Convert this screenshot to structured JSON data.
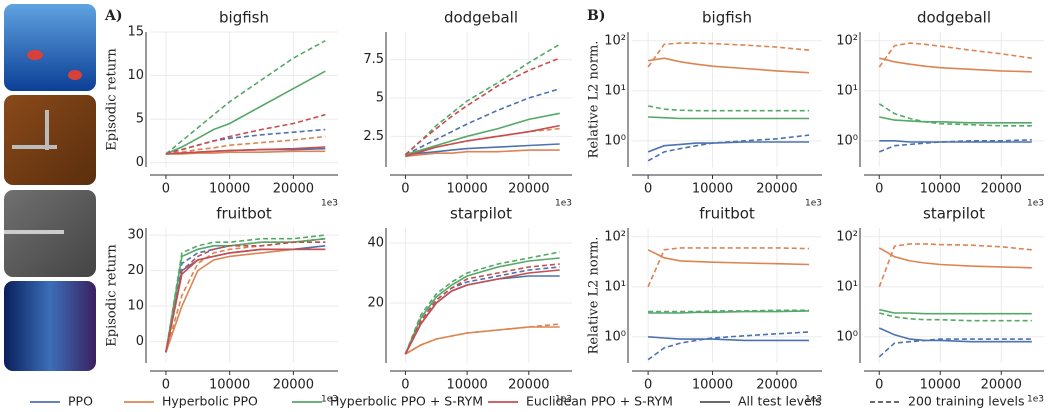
{
  "chart_data": [
    {
      "type": "line",
      "panel": "A)",
      "title": "bigfish",
      "ylabel": "Episodic return",
      "x_offset": "1e3",
      "x": [
        0,
        2500,
        5000,
        7500,
        10000,
        15000,
        20000,
        25000
      ],
      "xlim": [
        -2500,
        27000
      ],
      "xticks": [
        0,
        10000,
        20000
      ],
      "ylim": [
        -0.5,
        15
      ],
      "yticks": [
        0,
        5,
        10,
        15
      ],
      "log": false,
      "grid": true,
      "series": [
        {
          "color": "#4c72b0",
          "dashed": false,
          "values": [
            1,
            1.1,
            1.2,
            1.3,
            1.4,
            1.5,
            1.5,
            1.6
          ]
        },
        {
          "color": "#4c72b0",
          "dashed": true,
          "values": [
            1,
            1.5,
            2,
            2.5,
            2.8,
            3.2,
            3.5,
            3.8
          ]
        },
        {
          "color": "#dd8452",
          "dashed": false,
          "values": [
            1,
            1,
            1.1,
            1.1,
            1.2,
            1.2,
            1.3,
            1.3
          ]
        },
        {
          "color": "#dd8452",
          "dashed": true,
          "values": [
            1,
            1.2,
            1.5,
            1.7,
            2,
            2.3,
            2.6,
            3
          ]
        },
        {
          "color": "#55a868",
          "dashed": false,
          "values": [
            1,
            1.8,
            2.8,
            3.8,
            4.5,
            6.5,
            8.5,
            10.5
          ]
        },
        {
          "color": "#55a868",
          "dashed": true,
          "values": [
            1,
            2.5,
            4,
            5.5,
            7,
            9.5,
            12,
            14
          ]
        },
        {
          "color": "#c44e52",
          "dashed": false,
          "values": [
            1,
            1.1,
            1.2,
            1.3,
            1.4,
            1.5,
            1.6,
            1.8
          ]
        },
        {
          "color": "#c44e52",
          "dashed": true,
          "values": [
            1,
            1.5,
            2,
            2.5,
            3,
            3.8,
            4.5,
            5.5
          ]
        }
      ]
    },
    {
      "type": "line",
      "title": "dodgeball",
      "x_offset": "1e3",
      "x": [
        0,
        2500,
        5000,
        7500,
        10000,
        15000,
        20000,
        25000
      ],
      "xlim": [
        -2500,
        27000
      ],
      "xticks": [
        0,
        10000,
        20000
      ],
      "ylim": [
        0.5,
        9.3
      ],
      "yticks": [
        2.5,
        5.0,
        7.5
      ],
      "log": false,
      "grid": true,
      "series": [
        {
          "color": "#4c72b0",
          "dashed": false,
          "values": [
            1.3,
            1.4,
            1.5,
            1.6,
            1.7,
            1.8,
            1.9,
            2
          ]
        },
        {
          "color": "#4c72b0",
          "dashed": true,
          "values": [
            1.3,
            1.8,
            2.3,
            2.8,
            3.3,
            4.2,
            5,
            5.6
          ]
        },
        {
          "color": "#dd8452",
          "dashed": false,
          "values": [
            1.2,
            1.3,
            1.4,
            1.4,
            1.5,
            1.5,
            1.6,
            1.6
          ]
        },
        {
          "color": "#dd8452",
          "dashed": true,
          "values": [
            1.2,
            1.5,
            1.8,
            2,
            2.2,
            2.5,
            2.8,
            3
          ]
        },
        {
          "color": "#55a868",
          "dashed": false,
          "values": [
            1.3,
            1.6,
            1.9,
            2.2,
            2.5,
            3,
            3.6,
            4
          ]
        },
        {
          "color": "#55a868",
          "dashed": true,
          "values": [
            1.3,
            2.2,
            3.2,
            4,
            4.8,
            6,
            7.3,
            8.5
          ]
        },
        {
          "color": "#c44e52",
          "dashed": false,
          "values": [
            1.2,
            1.5,
            1.8,
            2,
            2.2,
            2.5,
            2.8,
            3.2
          ]
        },
        {
          "color": "#c44e52",
          "dashed": true,
          "values": [
            1.3,
            2.2,
            3,
            3.8,
            4.5,
            5.8,
            6.8,
            7.6
          ]
        }
      ]
    },
    {
      "type": "line",
      "panel": "B)",
      "title": "bigfish",
      "ylabel": "Relative L2 norm.",
      "x_offset": "1e3",
      "x": [
        0,
        2500,
        5000,
        7500,
        10000,
        15000,
        20000,
        25000
      ],
      "xlim": [
        -2500,
        27000
      ],
      "xticks": [
        0,
        10000,
        20000
      ],
      "ylim": [
        0.3,
        150
      ],
      "yticks": [
        {
          "value": 1,
          "label": "10⁰"
        },
        {
          "value": 10,
          "label": "10¹"
        },
        {
          "value": 100,
          "label": "10²"
        }
      ],
      "log": true,
      "grid": true,
      "series": [
        {
          "color": "#4c72b0",
          "dashed": false,
          "values": [
            0.6,
            0.8,
            0.85,
            0.9,
            0.9,
            0.95,
            0.95,
            0.95
          ]
        },
        {
          "color": "#4c72b0",
          "dashed": true,
          "values": [
            0.4,
            0.6,
            0.7,
            0.8,
            0.9,
            1.0,
            1.1,
            1.3
          ]
        },
        {
          "color": "#dd8452",
          "dashed": false,
          "values": [
            40,
            45,
            38,
            34,
            31,
            28,
            25,
            23
          ]
        },
        {
          "color": "#dd8452",
          "dashed": true,
          "values": [
            30,
            85,
            90,
            90,
            88,
            82,
            75,
            65
          ]
        },
        {
          "color": "#55a868",
          "dashed": false,
          "values": [
            3,
            2.9,
            2.8,
            2.8,
            2.8,
            2.8,
            2.8,
            2.8
          ]
        },
        {
          "color": "#55a868",
          "dashed": true,
          "values": [
            5,
            4.3,
            4.1,
            4,
            4,
            4,
            4,
            4
          ]
        }
      ]
    },
    {
      "type": "line",
      "title": "dodgeball",
      "x_offset": "1e3",
      "x": [
        0,
        2500,
        5000,
        7500,
        10000,
        15000,
        20000,
        25000
      ],
      "xlim": [
        -2500,
        27000
      ],
      "xticks": [
        0,
        10000,
        20000
      ],
      "ylim": [
        0.3,
        150
      ],
      "yticks": [
        {
          "value": 1,
          "label": "10⁰"
        },
        {
          "value": 10,
          "label": "10¹"
        },
        {
          "value": 100,
          "label": "10²"
        }
      ],
      "log": true,
      "grid": true,
      "series": [
        {
          "color": "#4c72b0",
          "dashed": false,
          "values": [
            1,
            1,
            0.95,
            0.95,
            0.95,
            0.95,
            0.95,
            0.95
          ]
        },
        {
          "color": "#4c72b0",
          "dashed": true,
          "values": [
            0.6,
            0.8,
            0.85,
            0.9,
            0.95,
            1,
            1,
            1.05
          ]
        },
        {
          "color": "#dd8452",
          "dashed": false,
          "values": [
            45,
            38,
            34,
            31,
            29,
            27,
            25,
            24
          ]
        },
        {
          "color": "#dd8452",
          "dashed": true,
          "values": [
            30,
            80,
            90,
            85,
            78,
            65,
            55,
            45
          ]
        },
        {
          "color": "#55a868",
          "dashed": false,
          "values": [
            3,
            2.6,
            2.5,
            2.4,
            2.4,
            2.3,
            2.3,
            2.3
          ]
        },
        {
          "color": "#55a868",
          "dashed": true,
          "values": [
            5.5,
            3.5,
            2.8,
            2.4,
            2.2,
            2.1,
            2,
            2
          ]
        }
      ]
    },
    {
      "type": "line",
      "title": "fruitbot",
      "ylabel": "Episodic return",
      "x_offset": "1e3",
      "x": [
        0,
        2500,
        5000,
        7500,
        10000,
        15000,
        20000,
        25000
      ],
      "xlim": [
        -2500,
        27000
      ],
      "xticks": [
        0,
        10000,
        20000
      ],
      "ylim": [
        -6,
        32
      ],
      "yticks": [
        0,
        10,
        20,
        30
      ],
      "log": false,
      "grid": true,
      "series": [
        {
          "color": "#4c72b0",
          "dashed": false,
          "values": [
            -3,
            20,
            23,
            24,
            25,
            26,
            26,
            27
          ]
        },
        {
          "color": "#4c72b0",
          "dashed": true,
          "values": [
            -3,
            22,
            25,
            26,
            27,
            28,
            28,
            29
          ]
        },
        {
          "color": "#dd8452",
          "dashed": false,
          "values": [
            -3,
            10,
            20,
            23,
            24,
            25,
            26,
            26
          ]
        },
        {
          "color": "#dd8452",
          "dashed": true,
          "values": [
            -3,
            13,
            22,
            25,
            26,
            27,
            28,
            28
          ]
        },
        {
          "color": "#55a868",
          "dashed": false,
          "values": [
            -3,
            24,
            26,
            27,
            27,
            28,
            28,
            29
          ]
        },
        {
          "color": "#55a868",
          "dashed": true,
          "values": [
            -3,
            25,
            27,
            28,
            28,
            29,
            29,
            30
          ]
        },
        {
          "color": "#c44e52",
          "dashed": false,
          "values": [
            -3,
            19,
            23,
            24,
            25,
            26,
            26,
            26
          ]
        },
        {
          "color": "#c44e52",
          "dashed": true,
          "values": [
            -3,
            20,
            24,
            26,
            27,
            27,
            28,
            28
          ]
        }
      ]
    },
    {
      "type": "line",
      "title": "starpilot",
      "x_offset": "1e3",
      "x": [
        0,
        2500,
        5000,
        7500,
        10000,
        15000,
        20000,
        25000
      ],
      "xlim": [
        -2500,
        27000
      ],
      "xticks": [
        0,
        10000,
        20000
      ],
      "ylim": [
        0,
        45
      ],
      "yticks": [
        20,
        40
      ],
      "log": false,
      "grid": true,
      "series": [
        {
          "color": "#4c72b0",
          "dashed": false,
          "values": [
            3,
            13,
            20,
            24,
            26,
            28,
            29,
            29
          ]
        },
        {
          "color": "#4c72b0",
          "dashed": true,
          "values": [
            3,
            14,
            21,
            25,
            27,
            29,
            31,
            32
          ]
        },
        {
          "color": "#dd8452",
          "dashed": false,
          "values": [
            3,
            6,
            8,
            9,
            10,
            11,
            12,
            12
          ]
        },
        {
          "color": "#dd8452",
          "dashed": true,
          "values": [
            3,
            6,
            8,
            9,
            10,
            11,
            12,
            13
          ]
        },
        {
          "color": "#55a868",
          "dashed": false,
          "values": [
            3,
            15,
            22,
            26,
            29,
            32,
            34,
            35
          ]
        },
        {
          "color": "#55a868",
          "dashed": true,
          "values": [
            3,
            16,
            23,
            27,
            30,
            33,
            35,
            37
          ]
        },
        {
          "color": "#c44e52",
          "dashed": false,
          "values": [
            3,
            13,
            20,
            24,
            26,
            28,
            30,
            31
          ]
        },
        {
          "color": "#c44e52",
          "dashed": true,
          "values": [
            3,
            14,
            21,
            25,
            28,
            30,
            32,
            33
          ]
        }
      ]
    },
    {
      "type": "line",
      "title": "fruitbot",
      "ylabel": "Relative L2 norm.",
      "x_offset": "1e3",
      "x": [
        0,
        2500,
        5000,
        7500,
        10000,
        15000,
        20000,
        25000
      ],
      "xlim": [
        -2500,
        27000
      ],
      "xticks": [
        0,
        10000,
        20000
      ],
      "ylim": [
        0.3,
        150
      ],
      "yticks": [
        {
          "value": 1,
          "label": "10⁰"
        },
        {
          "value": 10,
          "label": "10¹"
        },
        {
          "value": 100,
          "label": "10²"
        }
      ],
      "log": true,
      "grid": true,
      "series": [
        {
          "color": "#4c72b0",
          "dashed": false,
          "values": [
            1,
            0.95,
            0.9,
            0.9,
            0.9,
            0.85,
            0.85,
            0.85
          ]
        },
        {
          "color": "#4c72b0",
          "dashed": true,
          "values": [
            0.35,
            0.6,
            0.75,
            0.85,
            0.95,
            1.05,
            1.15,
            1.25
          ]
        },
        {
          "color": "#dd8452",
          "dashed": false,
          "values": [
            55,
            38,
            33,
            32,
            31,
            30,
            29,
            28
          ]
        },
        {
          "color": "#dd8452",
          "dashed": true,
          "values": [
            10,
            55,
            60,
            60,
            60,
            60,
            60,
            58
          ]
        },
        {
          "color": "#55a868",
          "dashed": false,
          "values": [
            3,
            3,
            3,
            3.1,
            3.1,
            3.2,
            3.2,
            3.3
          ]
        },
        {
          "color": "#55a868",
          "dashed": true,
          "values": [
            3.2,
            3.2,
            3.2,
            3.2,
            3.3,
            3.3,
            3.4,
            3.4
          ]
        }
      ]
    },
    {
      "type": "line",
      "title": "starpilot",
      "x_offset": "1e3",
      "x": [
        0,
        2500,
        5000,
        7500,
        10000,
        15000,
        20000,
        25000
      ],
      "xlim": [
        -2500,
        27000
      ],
      "xticks": [
        0,
        10000,
        20000
      ],
      "ylim": [
        0.3,
        150
      ],
      "yticks": [
        {
          "value": 1,
          "label": "10⁰"
        },
        {
          "value": 10,
          "label": "10¹"
        },
        {
          "value": 100,
          "label": "10²"
        }
      ],
      "log": true,
      "grid": true,
      "series": [
        {
          "color": "#4c72b0",
          "dashed": false,
          "values": [
            1.5,
            1.1,
            0.9,
            0.85,
            0.85,
            0.8,
            0.8,
            0.8
          ]
        },
        {
          "color": "#4c72b0",
          "dashed": true,
          "values": [
            0.4,
            0.75,
            0.8,
            0.85,
            0.9,
            0.9,
            0.9,
            0.9
          ]
        },
        {
          "color": "#dd8452",
          "dashed": false,
          "values": [
            60,
            40,
            33,
            30,
            28,
            26,
            25,
            24
          ]
        },
        {
          "color": "#dd8452",
          "dashed": true,
          "values": [
            10,
            65,
            72,
            72,
            70,
            68,
            63,
            55
          ]
        },
        {
          "color": "#55a868",
          "dashed": false,
          "values": [
            3.5,
            3,
            3,
            2.9,
            2.9,
            2.9,
            2.9,
            2.9
          ]
        },
        {
          "color": "#55a868",
          "dashed": true,
          "values": [
            3,
            2.5,
            2.3,
            2.2,
            2.2,
            2.1,
            2.1,
            2.1
          ]
        }
      ]
    }
  ],
  "legend": [
    {
      "name": "PPO",
      "color": "#4c72b0",
      "dashed": false
    },
    {
      "name": "Hyperbolic PPO",
      "color": "#dd8452",
      "dashed": false
    },
    {
      "name": "Hyperbolic PPO + S-RYM",
      "color": "#55a868",
      "dashed": false
    },
    {
      "name": "Euclidean PPO + S-RYM",
      "color": "#c44e52",
      "dashed": false
    },
    {
      "name": "All test levels",
      "color": "#555555",
      "dashed": false
    },
    {
      "name": "200 training levels",
      "color": "#555555",
      "dashed": true
    }
  ]
}
